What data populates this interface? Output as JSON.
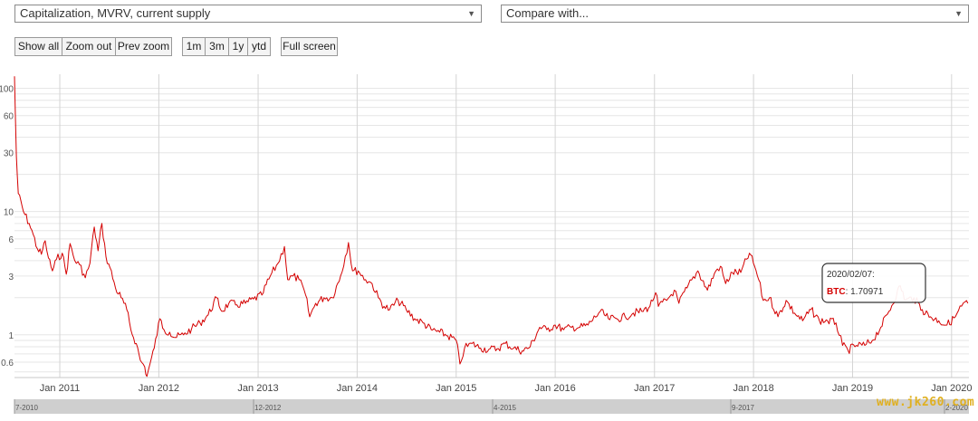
{
  "controls": {
    "metric_select": "Capitalization, MVRV, current supply",
    "compare_select": "Compare with...",
    "dropdown_arrow": "▼",
    "buttons": {
      "show_all": "Show all",
      "zoom_out": "Zoom out",
      "prev_zoom": "Prev zoom",
      "r1m": "1m",
      "r3m": "3m",
      "r1y": "1y",
      "ytd": "ytd",
      "full_screen": "Full screen"
    }
  },
  "tooltip": {
    "date": "2020/02/07:",
    "series": "BTC",
    "value": ": 1.70971"
  },
  "navigator_labels": [
    "7-2010",
    "12-2012",
    "4-2015",
    "9-2017",
    "2-2020"
  ],
  "watermark": "www.jk260.com",
  "chart_data": {
    "type": "line",
    "scale": "log",
    "title": "",
    "ylim": [
      0.45,
      130
    ],
    "xlim": [
      "2010-07",
      "2020-03"
    ],
    "y_ticks": [
      "100",
      "60",
      "30",
      "10",
      "6",
      "3",
      "1",
      "0.6"
    ],
    "x_ticks": [
      "Jan 2011",
      "Jan 2012",
      "Jan 2013",
      "Jan 2014",
      "Jan 2015",
      "Jan 2016",
      "Jan 2017",
      "Jan 2018",
      "Jan 2019",
      "Jan 2020"
    ],
    "line_color": "#d40000",
    "grid": true,
    "series": [
      {
        "name": "BTC",
        "points": [
          [
            "2010-07-18",
            125
          ],
          [
            "2010-07-25",
            28
          ],
          [
            "2010-08-01",
            14
          ],
          [
            "2010-08-20",
            10
          ],
          [
            "2010-09-10",
            8
          ],
          [
            "2010-09-25",
            6.5
          ],
          [
            "2010-10-10",
            5
          ],
          [
            "2010-10-25",
            4.5
          ],
          [
            "2010-11-08",
            5.8
          ],
          [
            "2010-11-20",
            4.2
          ],
          [
            "2010-12-05",
            3.3
          ],
          [
            "2010-12-20",
            4.1
          ],
          [
            "2011-01-10",
            4.6
          ],
          [
            "2011-01-25",
            3.1
          ],
          [
            "2011-02-08",
            5.5
          ],
          [
            "2011-02-25",
            4.0
          ],
          [
            "2011-03-15",
            3.7
          ],
          [
            "2011-04-05",
            2.9
          ],
          [
            "2011-04-22",
            3.8
          ],
          [
            "2011-05-08",
            7.5
          ],
          [
            "2011-05-22",
            4.8
          ],
          [
            "2011-06-05",
            8.0
          ],
          [
            "2011-06-20",
            4.3
          ],
          [
            "2011-07-05",
            3.5
          ],
          [
            "2011-07-25",
            2.4
          ],
          [
            "2011-08-15",
            2.0
          ],
          [
            "2011-09-05",
            1.6
          ],
          [
            "2011-09-20",
            1.1
          ],
          [
            "2011-10-10",
            0.85
          ],
          [
            "2011-10-25",
            0.62
          ],
          [
            "2011-11-10",
            0.55
          ],
          [
            "2011-11-18",
            0.46
          ],
          [
            "2011-12-01",
            0.6
          ],
          [
            "2011-12-15",
            0.78
          ],
          [
            "2012-01-05",
            1.35
          ],
          [
            "2012-01-20",
            1.1
          ],
          [
            "2012-02-10",
            1.05
          ],
          [
            "2012-03-01",
            0.95
          ],
          [
            "2012-04-01",
            1.0
          ],
          [
            "2012-05-01",
            1.12
          ],
          [
            "2012-06-01",
            1.25
          ],
          [
            "2012-07-01",
            1.45
          ],
          [
            "2012-08-01",
            2.0
          ],
          [
            "2012-08-20",
            1.55
          ],
          [
            "2012-09-15",
            1.8
          ],
          [
            "2012-10-15",
            1.75
          ],
          [
            "2012-11-15",
            1.8
          ],
          [
            "2012-12-15",
            1.95
          ],
          [
            "2013-01-15",
            2.1
          ],
          [
            "2013-02-15",
            3.0
          ],
          [
            "2013-03-15",
            3.8
          ],
          [
            "2013-04-08",
            5.2
          ],
          [
            "2013-04-20",
            2.8
          ],
          [
            "2013-05-10",
            3.0
          ],
          [
            "2013-06-01",
            2.8
          ],
          [
            "2013-06-25",
            2.1
          ],
          [
            "2013-07-10",
            1.4
          ],
          [
            "2013-08-01",
            1.8
          ],
          [
            "2013-09-01",
            2.0
          ],
          [
            "2013-10-01",
            2.0
          ],
          [
            "2013-11-01",
            3.0
          ],
          [
            "2013-11-30",
            5.6
          ],
          [
            "2013-12-15",
            3.3
          ],
          [
            "2014-01-05",
            3.3
          ],
          [
            "2014-02-01",
            2.8
          ],
          [
            "2014-02-25",
            2.6
          ],
          [
            "2014-03-20",
            2.0
          ],
          [
            "2014-04-10",
            1.7
          ],
          [
            "2014-05-01",
            1.6
          ],
          [
            "2014-06-01",
            1.9
          ],
          [
            "2014-07-01",
            1.6
          ],
          [
            "2014-08-01",
            1.35
          ],
          [
            "2014-09-01",
            1.25
          ],
          [
            "2014-10-01",
            1.1
          ],
          [
            "2014-11-01",
            1.05
          ],
          [
            "2014-12-01",
            0.98
          ],
          [
            "2015-01-01",
            0.9
          ],
          [
            "2015-01-15",
            0.58
          ],
          [
            "2015-02-01",
            0.78
          ],
          [
            "2015-03-01",
            0.85
          ],
          [
            "2015-04-01",
            0.78
          ],
          [
            "2015-05-01",
            0.76
          ],
          [
            "2015-06-01",
            0.77
          ],
          [
            "2015-07-01",
            0.85
          ],
          [
            "2015-08-01",
            0.78
          ],
          [
            "2015-09-01",
            0.74
          ],
          [
            "2015-10-01",
            0.8
          ],
          [
            "2015-11-05",
            1.15
          ],
          [
            "2015-12-01",
            1.1
          ],
          [
            "2016-01-01",
            1.2
          ],
          [
            "2016-02-01",
            1.1
          ],
          [
            "2016-03-01",
            1.15
          ],
          [
            "2016-04-01",
            1.15
          ],
          [
            "2016-05-01",
            1.2
          ],
          [
            "2016-06-15",
            1.55
          ],
          [
            "2016-07-15",
            1.35
          ],
          [
            "2016-08-15",
            1.35
          ],
          [
            "2016-09-15",
            1.4
          ],
          [
            "2016-10-15",
            1.5
          ],
          [
            "2016-11-15",
            1.55
          ],
          [
            "2016-12-15",
            1.7
          ],
          [
            "2017-01-05",
            2.2
          ],
          [
            "2017-01-15",
            1.7
          ],
          [
            "2017-02-15",
            1.9
          ],
          [
            "2017-03-15",
            2.3
          ],
          [
            "2017-04-01",
            1.8
          ],
          [
            "2017-05-01",
            2.4
          ],
          [
            "2017-06-10",
            3.3
          ],
          [
            "2017-07-15",
            2.3
          ],
          [
            "2017-08-15",
            3.3
          ],
          [
            "2017-09-01",
            3.6
          ],
          [
            "2017-09-20",
            2.6
          ],
          [
            "2017-10-15",
            3.2
          ],
          [
            "2017-11-15",
            3.2
          ],
          [
            "2017-12-17",
            4.6
          ],
          [
            "2018-01-05",
            3.6
          ],
          [
            "2018-01-20",
            2.8
          ],
          [
            "2018-02-06",
            1.9
          ],
          [
            "2018-03-01",
            2.0
          ],
          [
            "2018-04-01",
            1.4
          ],
          [
            "2018-05-01",
            1.9
          ],
          [
            "2018-06-01",
            1.5
          ],
          [
            "2018-07-01",
            1.3
          ],
          [
            "2018-08-01",
            1.6
          ],
          [
            "2018-09-01",
            1.3
          ],
          [
            "2018-10-01",
            1.3
          ],
          [
            "2018-11-01",
            1.25
          ],
          [
            "2018-11-25",
            0.82
          ],
          [
            "2018-12-15",
            0.75
          ],
          [
            "2019-01-15",
            0.82
          ],
          [
            "2019-02-15",
            0.82
          ],
          [
            "2019-03-15",
            0.9
          ],
          [
            "2019-04-15",
            1.15
          ],
          [
            "2019-05-15",
            1.55
          ],
          [
            "2019-06-26",
            2.5
          ],
          [
            "2019-07-15",
            1.9
          ],
          [
            "2019-08-15",
            2.0
          ],
          [
            "2019-09-15",
            1.6
          ],
          [
            "2019-10-15",
            1.4
          ],
          [
            "2019-11-15",
            1.3
          ],
          [
            "2019-12-15",
            1.2
          ],
          [
            "2020-01-15",
            1.4
          ],
          [
            "2020-02-07",
            1.71
          ],
          [
            "2020-02-20",
            1.85
          ],
          [
            "2020-03-01",
            1.8
          ]
        ]
      }
    ]
  }
}
